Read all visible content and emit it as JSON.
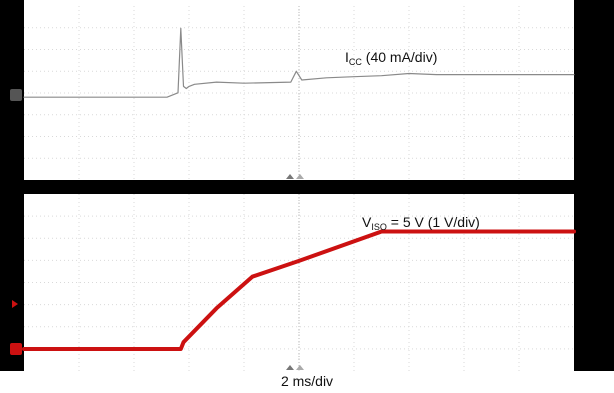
{
  "chart_data": [
    {
      "type": "line",
      "series": [
        {
          "label_main": "I",
          "label_sub": "CC",
          "label_rest": " (40 mA/div)",
          "color": "#8a8a8a",
          "x": [
            -10,
            -4.8,
            -4.4,
            -4.3,
            -4.2,
            -4.1,
            -4.0,
            -3.8,
            -3.0,
            -2.0,
            -0.3,
            -0.1,
            0.1,
            1.0,
            2.0,
            3.0,
            4.0,
            5.0,
            6.0,
            7.0,
            10.0
          ],
          "y": [
            -0.1,
            -0.1,
            0.1,
            3.1,
            0.4,
            0.3,
            0.4,
            0.5,
            0.6,
            0.55,
            0.6,
            1.1,
            0.7,
            0.8,
            0.85,
            0.9,
            1.0,
            0.95,
            0.95,
            0.95,
            0.95
          ]
        },
        {
          "label_main": "V",
          "label_sub": "ISO",
          "label_rest": " = 5 V (1 V/div)",
          "color": "#cc1111",
          "x": [
            -10,
            -4.3,
            -4.2,
            -3.0,
            -1.7,
            0.0,
            3.0,
            3.5,
            10.0
          ],
          "y": [
            0,
            0,
            0.3,
            1.8,
            3.2,
            3.9,
            5.2,
            5.2,
            5.2
          ]
        }
      ],
      "xlabel": "2 ms/div",
      "x_per_div": 2,
      "divisions_x": 10,
      "grid": true
    }
  ]
}
